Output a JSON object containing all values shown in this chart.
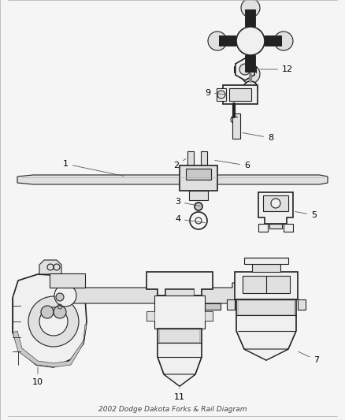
{
  "title": "2002 Dodge Dakota Forks & Rail Diagram",
  "background_color": "#f5f5f5",
  "line_color": "#222222",
  "label_color": "#000000",
  "figsize": [
    4.38,
    5.33
  ],
  "dpi": 100
}
